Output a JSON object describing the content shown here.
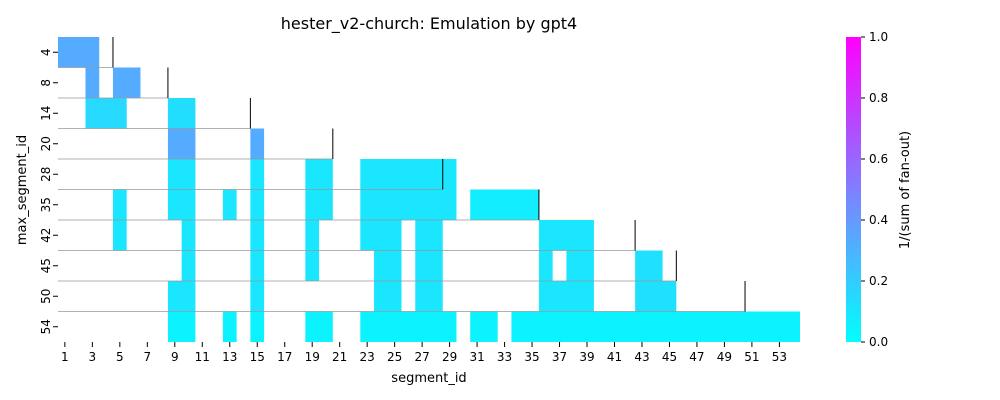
{
  "chart_data": {
    "type": "heatmap",
    "title": "hester_v2-church: Emulation by gpt4",
    "xlabel": "segment_id",
    "ylabel": "max_segment_id",
    "x_ticks": [
      "1",
      "3",
      "5",
      "7",
      "9",
      "11",
      "13",
      "15",
      "17",
      "19",
      "21",
      "23",
      "25",
      "27",
      "29",
      "31",
      "33",
      "35",
      "37",
      "39",
      "41",
      "43",
      "45",
      "47",
      "49",
      "51",
      "53"
    ],
    "x_range": [
      1,
      54
    ],
    "y_rows": [
      "4",
      "8",
      "14",
      "20",
      "28",
      "35",
      "42",
      "45",
      "50",
      "54"
    ],
    "colorbar": {
      "label": "1/(sum of fan-out)",
      "range": [
        0.0,
        1.0
      ],
      "ticks": [
        "0.0",
        "0.2",
        "0.4",
        "0.6",
        "0.8",
        "1.0"
      ],
      "colormap": [
        "#00ffff",
        "#ff00ff"
      ]
    },
    "rows": [
      {
        "label": "4",
        "boundary": 4,
        "cells": [
          {
            "x0": 1,
            "x1": 3,
            "v": 0.33
          }
        ]
      },
      {
        "label": "8",
        "boundary": 8,
        "cells": [
          {
            "x0": 3,
            "x1": 3,
            "v": 0.33
          },
          {
            "x0": 5,
            "x1": 6,
            "v": 0.33
          }
        ]
      },
      {
        "label": "14",
        "boundary": 14,
        "cells": [
          {
            "x0": 3,
            "x1": 5,
            "v": 0.15
          },
          {
            "x0": 9,
            "x1": 10,
            "v": 0.13
          }
        ]
      },
      {
        "label": "20",
        "boundary": 20,
        "cells": [
          {
            "x0": 9,
            "x1": 10,
            "v": 0.33
          },
          {
            "x0": 15,
            "x1": 15,
            "v": 0.33
          }
        ]
      },
      {
        "label": "28",
        "boundary": 28,
        "cells": [
          {
            "x0": 9,
            "x1": 10,
            "v": 0.1
          },
          {
            "x0": 15,
            "x1": 15,
            "v": 0.1
          },
          {
            "x0": 19,
            "x1": 20,
            "v": 0.1
          },
          {
            "x0": 23,
            "x1": 29,
            "v": 0.1
          }
        ]
      },
      {
        "label": "35",
        "boundary": 35,
        "cells": [
          {
            "x0": 5,
            "x1": 5,
            "v": 0.1
          },
          {
            "x0": 9,
            "x1": 10,
            "v": 0.1
          },
          {
            "x0": 13,
            "x1": 13,
            "v": 0.1
          },
          {
            "x0": 15,
            "x1": 15,
            "v": 0.1
          },
          {
            "x0": 19,
            "x1": 20,
            "v": 0.1
          },
          {
            "x0": 23,
            "x1": 29,
            "v": 0.1
          },
          {
            "x0": 31,
            "x1": 35,
            "v": 0.07
          }
        ]
      },
      {
        "label": "42",
        "boundary": 42,
        "cells": [
          {
            "x0": 5,
            "x1": 5,
            "v": 0.1
          },
          {
            "x0": 10,
            "x1": 10,
            "v": 0.1
          },
          {
            "x0": 15,
            "x1": 15,
            "v": 0.1
          },
          {
            "x0": 19,
            "x1": 19,
            "v": 0.1
          },
          {
            "x0": 23,
            "x1": 25,
            "v": 0.1
          },
          {
            "x0": 27,
            "x1": 28,
            "v": 0.1
          },
          {
            "x0": 36,
            "x1": 39,
            "v": 0.1
          }
        ]
      },
      {
        "label": "45",
        "boundary": 45,
        "cells": [
          {
            "x0": 10,
            "x1": 10,
            "v": 0.1
          },
          {
            "x0": 15,
            "x1": 15,
            "v": 0.1
          },
          {
            "x0": 19,
            "x1": 19,
            "v": 0.1
          },
          {
            "x0": 24,
            "x1": 25,
            "v": 0.1
          },
          {
            "x0": 27,
            "x1": 28,
            "v": 0.1
          },
          {
            "x0": 36,
            "x1": 36,
            "v": 0.1
          },
          {
            "x0": 38,
            "x1": 39,
            "v": 0.1
          },
          {
            "x0": 43,
            "x1": 44,
            "v": 0.12
          }
        ]
      },
      {
        "label": "50",
        "boundary": 50,
        "cells": [
          {
            "x0": 9,
            "x1": 10,
            "v": 0.1
          },
          {
            "x0": 15,
            "x1": 15,
            "v": 0.1
          },
          {
            "x0": 24,
            "x1": 25,
            "v": 0.1
          },
          {
            "x0": 27,
            "x1": 28,
            "v": 0.1
          },
          {
            "x0": 36,
            "x1": 39,
            "v": 0.1
          },
          {
            "x0": 43,
            "x1": 45,
            "v": 0.12
          }
        ]
      },
      {
        "label": "54",
        "boundary": null,
        "cells": [
          {
            "x0": 9,
            "x1": 10,
            "v": 0.05
          },
          {
            "x0": 13,
            "x1": 13,
            "v": 0.05
          },
          {
            "x0": 15,
            "x1": 15,
            "v": 0.05
          },
          {
            "x0": 19,
            "x1": 20,
            "v": 0.05
          },
          {
            "x0": 23,
            "x1": 29,
            "v": 0.05
          },
          {
            "x0": 31,
            "x1": 32,
            "v": 0.05
          },
          {
            "x0": 34,
            "x1": 54,
            "v": 0.05
          }
        ]
      }
    ]
  }
}
